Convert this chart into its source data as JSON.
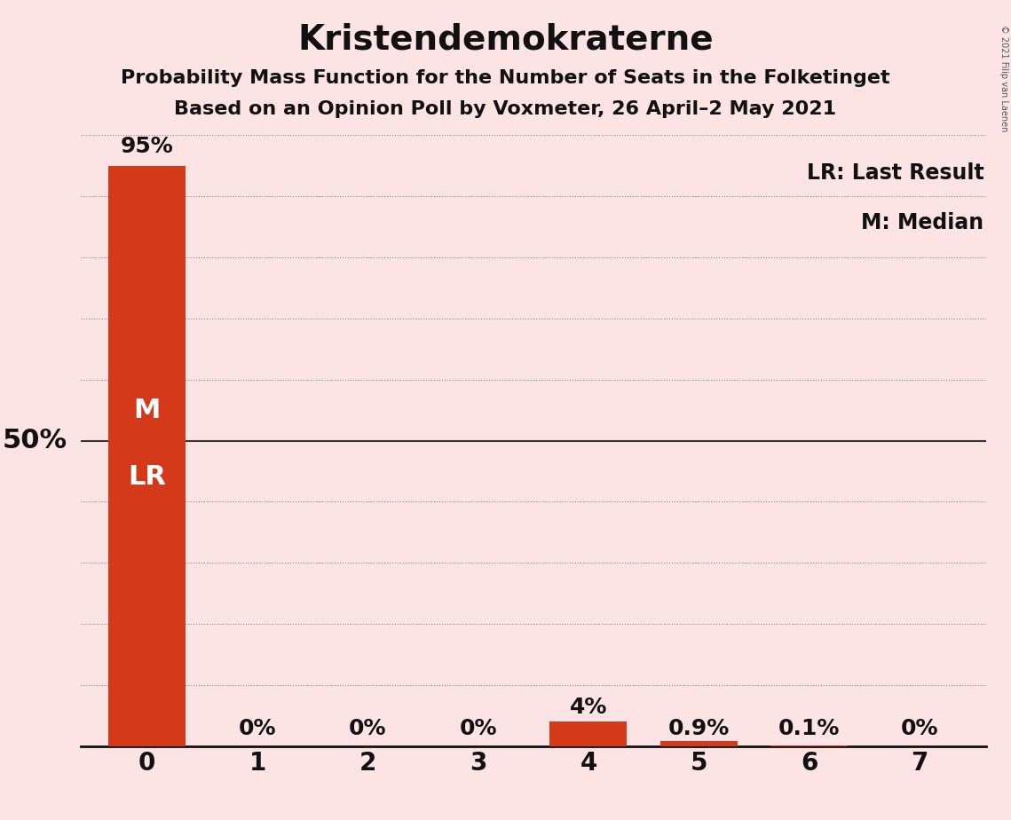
{
  "title": "Kristendemokraterne",
  "subtitle1": "Probability Mass Function for the Number of Seats in the Folketinget",
  "subtitle2": "Based on an Opinion Poll by Voxmeter, 26 April–2 May 2021",
  "copyright": "© 2021 Filip van Laenen",
  "categories": [
    0,
    1,
    2,
    3,
    4,
    5,
    6,
    7
  ],
  "values": [
    95,
    0,
    0,
    0,
    4,
    0.9,
    0.1,
    0
  ],
  "bar_color": "#d43a1a",
  "background_color": "#fce4e4",
  "ylabel_50": "50%",
  "label_texts": [
    "95%",
    "0%",
    "0%",
    "0%",
    "4%",
    "0.9%",
    "0.1%",
    "0%"
  ],
  "legend_lr": "LR: Last Result",
  "legend_m": "M: Median",
  "marker_text_m": "M",
  "marker_text_lr": "LR",
  "ylim": [
    0,
    100
  ],
  "grid_color": "#888888",
  "title_fontsize": 28,
  "subtitle_fontsize": 16,
  "axis_label_fontsize": 20,
  "bar_label_fontsize": 18,
  "marker_fontsize": 22,
  "legend_fontsize": 17,
  "fifty_label_fontsize": 22
}
